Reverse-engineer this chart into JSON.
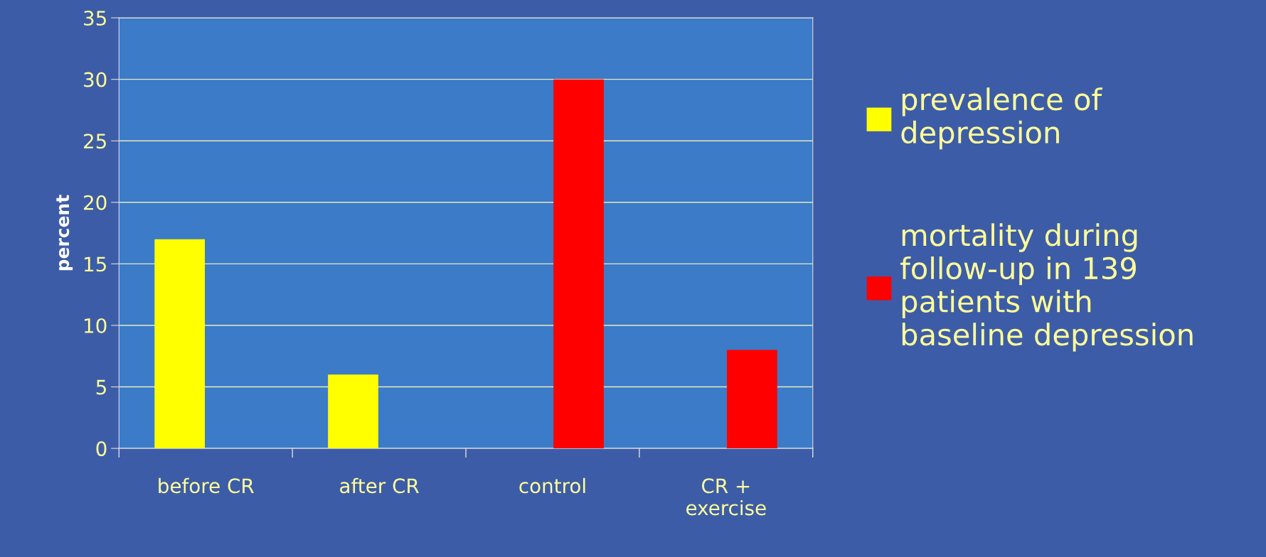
{
  "chart_data": {
    "type": "bar",
    "ylabel": "percent",
    "categories": [
      "before CR",
      "after CR",
      "control",
      "CR +\nexercise"
    ],
    "series": [
      {
        "name": "prevalence of\ndepression",
        "color": "#ffff00",
        "values": [
          17,
          6,
          null,
          null
        ]
      },
      {
        "name": "mortality during\nfollow-up in 139\npatients with\nbaseline depression",
        "color": "#ff0000",
        "values": [
          null,
          null,
          30,
          8
        ]
      }
    ],
    "ylim": [
      0,
      35
    ],
    "yticks": [
      0,
      5,
      10,
      15,
      20,
      25,
      30,
      35
    ],
    "grid": "y",
    "legend": "right"
  }
}
